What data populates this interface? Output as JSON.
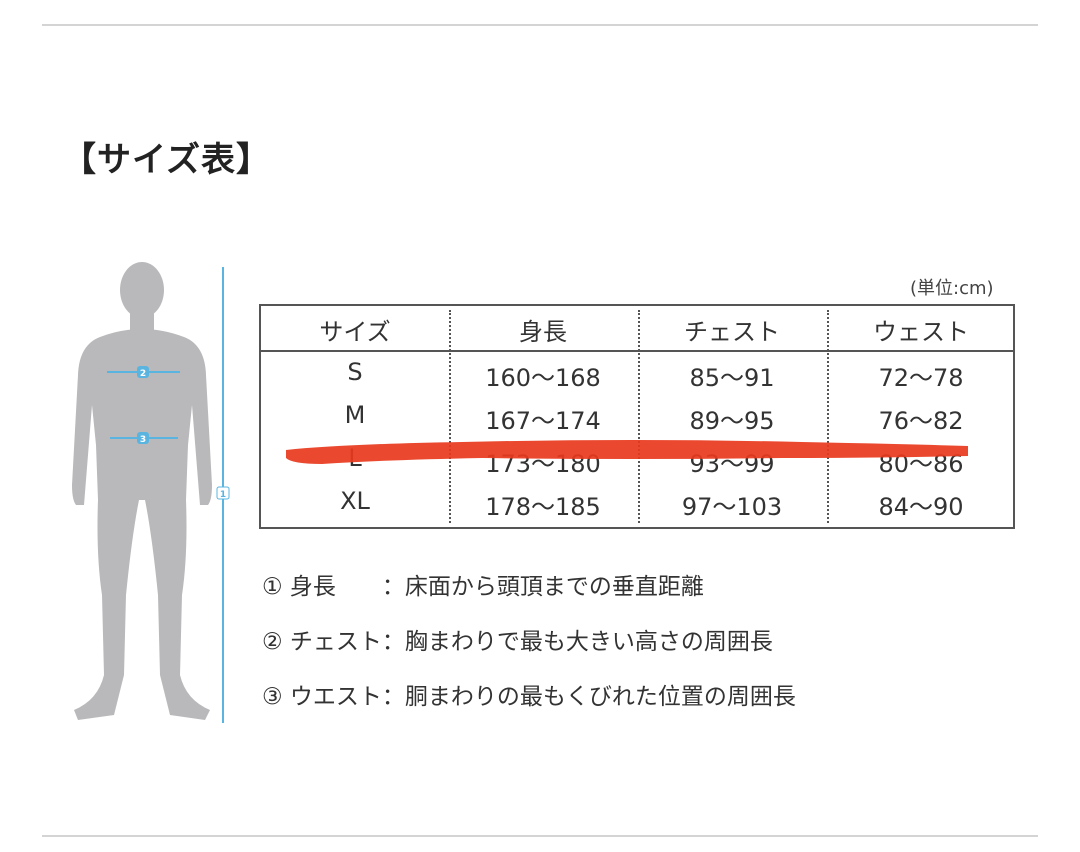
{
  "title": "【サイズ表】",
  "unit": "(単位:cm)",
  "table": {
    "headers": [
      "サイズ",
      "身長",
      "チェスト",
      "ウェスト"
    ],
    "rows": [
      [
        "S",
        "160〜168",
        "85〜91",
        "72〜78"
      ],
      [
        "M",
        "167〜174",
        "89〜95",
        "76〜82"
      ],
      [
        "L",
        "173〜180",
        "93〜99",
        "80〜86"
      ],
      [
        "XL",
        "178〜185",
        "97〜103",
        "84〜90"
      ]
    ],
    "struck_row": "L"
  },
  "legend": [
    "① 身長　　：床面から頭頂までの垂直距離",
    "② チェスト：胸まわりで最も大きい高さの周囲長",
    "③ ウエスト：胴まわりの最もくびれた位置の周囲長"
  ],
  "figure": {
    "markers": [
      "1",
      "2",
      "3"
    ]
  },
  "colors": {
    "strike": "#e8391d",
    "measure": "#5ab4e0",
    "silhouette": "#b9b9bb"
  }
}
